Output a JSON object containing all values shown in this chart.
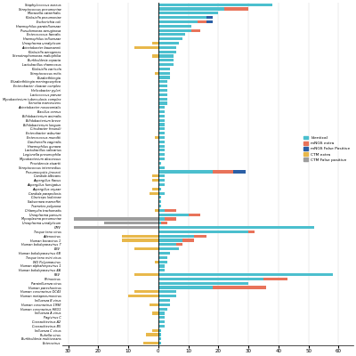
{
  "pathogens": [
    "Staphylococcus aureus",
    "Streptococcus pneumoniae",
    "Moraxella catarrhalis",
    "Klebsiella pneumoniae",
    "Escherichia coli",
    "Haemophilus parainfluenzae",
    "Pseudomonas aeruginosa",
    "Enterococcus faecalis",
    "Haemophilus influenzae",
    "Ureaplasma urealyticum",
    "Acinetobacter baumannii",
    "Klebsiella aerogenes",
    "Stenotrophomonas maltophilia",
    "Burkholderia cepacia",
    "Lactobacillus rhamnosus",
    "Klebsiella variicola",
    "Streptococcus mitis",
    "Elizabethkingia",
    "Elizabethkingia meningoseptica",
    "Enterobacter cloacae complex",
    "Helicobacter pylori",
    "Lactococcus parvae",
    "Mycobacterium tuberculosis complex",
    "Serratia marcescens",
    "Acinetobacter nosocomialis",
    "Bacillus cereus",
    "Bifidobacterium animalis",
    "Bifidobacterium breve",
    "Bifidobacterium longum",
    "Citrobacter freundii",
    "Enterobacter asburiae",
    "Enterococcus mundtii",
    "Gardnerella vaginalis",
    "Haemophilus gonaea",
    "Lactobacillus salivarius",
    "Legionella pneumophila",
    "Mycobacterium abscessus",
    "Providencia stuartii",
    "Streptococcus intermedius",
    "Pneumocystis jirovecii",
    "Candida albicans",
    "Aspergillus flavus",
    "Aspergillus fumigatus",
    "Aspergillus oryzae",
    "Candida parapsilosis",
    "Claviceps lodicinae",
    "Saksenaea marneffei",
    "Trametes polyzona",
    "Chlamydia trachomatis",
    "Ureaplasma parvum",
    "Mycoplasma pneumoniae",
    "Ureaplasma urealyticum",
    "CMV",
    "Torque teno virus",
    "Adenovirus",
    "Human bocavirus 1",
    "Human bokdoparavirus 7",
    "EBV",
    "Human bokdoparavirus 6B",
    "Torque teno mini virus",
    "WU Polyomavirus",
    "Human alphaherpsvirus 1",
    "Human bokdoparavirus 4A",
    "RSV",
    "Rhinovirus",
    "Parainfluenza virus",
    "Human parechovirus",
    "Human coronavirus OC43",
    "Human metapneumovirus",
    "Influenza B virus",
    "Human coronavirus 199E",
    "Human coronavirus HKU1",
    "Influenza A virus",
    "Pagivirus C",
    "Coxsackievirus A2",
    "Coxsackievirus B5",
    "Influenza C virus",
    "Rubella virus",
    "Burkholderia multivorans",
    "Enterovirus"
  ],
  "identical": [
    38,
    22,
    20,
    16,
    13,
    11,
    11,
    9,
    8,
    7,
    6,
    6,
    5,
    5,
    5,
    4,
    4,
    4,
    3,
    3,
    3,
    3,
    3,
    3,
    2,
    2,
    2,
    2,
    2,
    2,
    2,
    2,
    2,
    2,
    2,
    2,
    2,
    1,
    2,
    18,
    2,
    2,
    2,
    1,
    2,
    1,
    1,
    1,
    2,
    10,
    2,
    1,
    52,
    30,
    12,
    8,
    6,
    7,
    4,
    3,
    3,
    2,
    2,
    58,
    35,
    30,
    18,
    6,
    6,
    4,
    4,
    3,
    2,
    2,
    2,
    2,
    1,
    1,
    1,
    1
  ],
  "mngs_extra": [
    0,
    8,
    0,
    0,
    3,
    0,
    3,
    0,
    0,
    0,
    0,
    0,
    0,
    0,
    0,
    0,
    0,
    0,
    0,
    0,
    0,
    0,
    0,
    0,
    0,
    0,
    0,
    0,
    0,
    0,
    0,
    0,
    0,
    0,
    0,
    0,
    0,
    0,
    0,
    7,
    0,
    0,
    0,
    0,
    0,
    0,
    0,
    0,
    4,
    4,
    4,
    2,
    0,
    2,
    4,
    4,
    2,
    0,
    0,
    0,
    0,
    0,
    0,
    0,
    8,
    0,
    18,
    0,
    0,
    0,
    0,
    0,
    0,
    0,
    0,
    0,
    0,
    0,
    0,
    0
  ],
  "mngs_fp": [
    0,
    0,
    0,
    2,
    2,
    0,
    0,
    0,
    0,
    0,
    0,
    0,
    0,
    0,
    0,
    0,
    0,
    0,
    0,
    0,
    0,
    0,
    0,
    0,
    0,
    0,
    0,
    0,
    0,
    0,
    0,
    0,
    0,
    0,
    0,
    0,
    0,
    0,
    0,
    4,
    0,
    0,
    0,
    0,
    0,
    0,
    0,
    0,
    0,
    0,
    0,
    0,
    0,
    0,
    0,
    0,
    0,
    0,
    0,
    0,
    0,
    0,
    0,
    0,
    0,
    0,
    0,
    0,
    0,
    0,
    0,
    0,
    0,
    0,
    0,
    0,
    0,
    0,
    0,
    0
  ],
  "ctm_extra": [
    0,
    0,
    0,
    0,
    0,
    0,
    0,
    0,
    0,
    2,
    8,
    0,
    2,
    0,
    0,
    0,
    1,
    0,
    0,
    0,
    0,
    0,
    0,
    0,
    0,
    0,
    0,
    0,
    0,
    0,
    0,
    1,
    0,
    0,
    0,
    0,
    0,
    0,
    0,
    0,
    2,
    2,
    0,
    2,
    3,
    0,
    0,
    0,
    1,
    0,
    0,
    0,
    0,
    0,
    12,
    12,
    0,
    8,
    0,
    0,
    1,
    0,
    0,
    8,
    0,
    0,
    0,
    8,
    10,
    0,
    3,
    0,
    2,
    0,
    0,
    0,
    2,
    4,
    0,
    5
  ],
  "ctm_fp": [
    0,
    0,
    0,
    0,
    0,
    0,
    0,
    0,
    0,
    0,
    0,
    0,
    0,
    0,
    0,
    0,
    0,
    0,
    0,
    0,
    0,
    0,
    0,
    0,
    0,
    0,
    0,
    0,
    0,
    0,
    0,
    0,
    0,
    0,
    0,
    0,
    0,
    0,
    0,
    0,
    0,
    0,
    0,
    0,
    0,
    0,
    0,
    0,
    0,
    0,
    28,
    18,
    28,
    0,
    0,
    0,
    0,
    0,
    0,
    0,
    0,
    0,
    0,
    0,
    0,
    0,
    0,
    0,
    0,
    0,
    0,
    0,
    0,
    0,
    0,
    0,
    0,
    0,
    0,
    0
  ],
  "colors": {
    "identical": "#4BBFCE",
    "mngs_extra": "#E8735A",
    "mngs_fp": "#2B5FA5",
    "ctm_extra": "#E8B84B",
    "ctm_fp": "#9E9E9E"
  },
  "legend_labels": [
    "Identical",
    "mNGS extra",
    "mNGS False Positive",
    "CTM extra",
    "CTM False positive"
  ],
  "xlim_left": -32,
  "xlim_right": 65,
  "xticks": [
    -30,
    -20,
    -10,
    0,
    10,
    20,
    30,
    40,
    50,
    60
  ]
}
